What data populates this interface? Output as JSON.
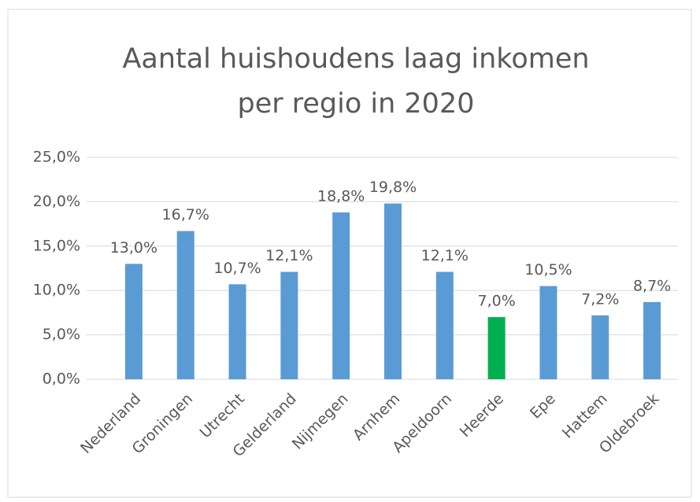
{
  "chart_data": {
    "type": "bar",
    "title": [
      "Aantal huishoudens laag inkomen",
      "per regio in 2020"
    ],
    "categories": [
      "Nederland",
      "Groningen",
      "Utrecht",
      "Gelderland",
      "Nijmegen",
      "Arnhem",
      "Apeldoorn",
      "Heerde",
      "Epe",
      "Hattem",
      "Oldebroek"
    ],
    "values": [
      13.0,
      16.7,
      10.7,
      12.1,
      18.8,
      19.8,
      12.1,
      7.0,
      10.5,
      7.2,
      8.7
    ],
    "value_labels": [
      "13,0%",
      "16,7%",
      "10,7%",
      "12,1%",
      "18,8%",
      "19,8%",
      "12,1%",
      "7,0%",
      "10,5%",
      "7,2%",
      "8,7%"
    ],
    "colors": [
      "#5b9bd5",
      "#5b9bd5",
      "#5b9bd5",
      "#5b9bd5",
      "#5b9bd5",
      "#5b9bd5",
      "#5b9bd5",
      "#00b050",
      "#5b9bd5",
      "#5b9bd5",
      "#5b9bd5"
    ],
    "ylim": [
      0,
      25
    ],
    "yticks": [
      {
        "value": 0,
        "label": "0,0%"
      },
      {
        "value": 5,
        "label": "5,0%"
      },
      {
        "value": 10,
        "label": "10,0%"
      },
      {
        "value": 15,
        "label": "15,0%"
      },
      {
        "value": 20,
        "label": "20,0%"
      },
      {
        "value": 25,
        "label": "25,0%"
      }
    ],
    "grid": true
  }
}
